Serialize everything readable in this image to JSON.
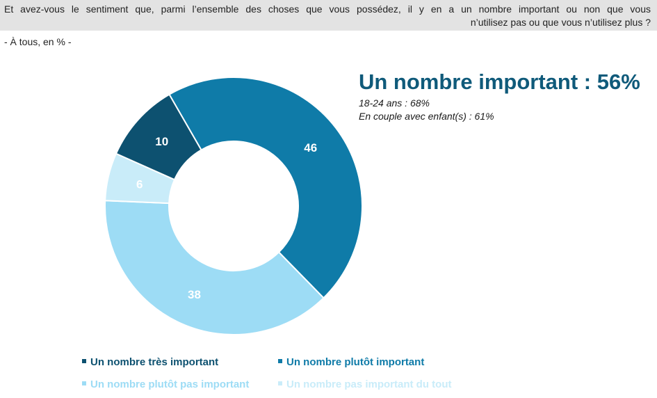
{
  "question": {
    "line1": "Et avez-vous le sentiment que, parmi l’ensemble des choses que vous possédez, il y en a un nombre important ou non que vous",
    "line2": "n’utilisez pas ou que vous n’utilisez plus ?"
  },
  "subtitle": "- À tous, en % -",
  "headline": "Un nombre important : 56%",
  "details": [
    "18-24 ans  : 68%",
    "En couple avec enfant(s) : 61%"
  ],
  "colors": {
    "tres_important": "#0d5170",
    "plutot_important": "#0f7ba8",
    "plutot_pas_important": "#9ddcf5",
    "pas_important": "#c9ecf9",
    "headline": "#0f5a7a"
  },
  "chart_data": {
    "type": "pie",
    "donut": true,
    "start_angle_deg": -30,
    "categories": [
      "Un nombre plutôt important",
      "Un nombre plutôt pas important",
      "Un nombre pas important du tout",
      "Un nombre très important"
    ],
    "values": [
      46,
      38,
      6,
      10
    ],
    "data_labels": [
      "46",
      "38",
      "6",
      "10"
    ],
    "slice_colors": [
      "#0f7ba8",
      "#9ddcf5",
      "#c9ecf9",
      "#0d5170"
    ],
    "legend": [
      {
        "label": "Un nombre très important",
        "color": "#0d5170"
      },
      {
        "label": "Un nombre plutôt important",
        "color": "#0f7ba8"
      },
      {
        "label": "Un nombre plutôt pas important",
        "color": "#9ddcf5"
      },
      {
        "label": "Un nombre pas important du tout",
        "color": "#c9ecf9"
      }
    ],
    "legend_position": "bottom"
  }
}
